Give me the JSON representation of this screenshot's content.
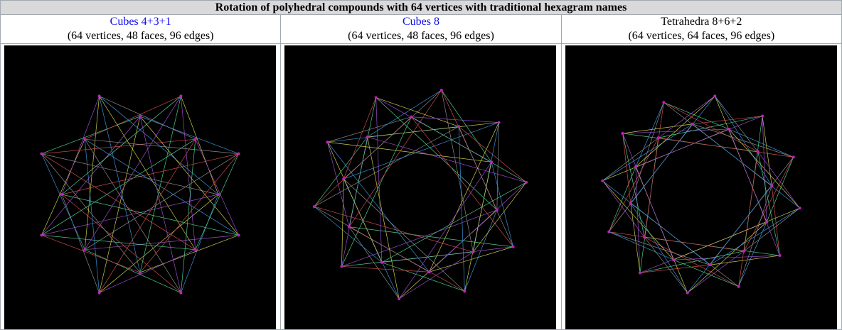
{
  "table": {
    "title": "Rotation of polyhedral compounds with 64 vertices with traditional hexagram names",
    "columns": [
      {
        "name": "Cubes 4+3+1",
        "stats": "(64 vertices, 48 faces, 96 edges)"
      },
      {
        "name": "Cubes 8",
        "stats": "(64 vertices, 48 faces, 96 edges)"
      },
      {
        "name": "Tetrahedra 8+6+2",
        "stats": "(64 vertices, 64 faces, 96 edges)"
      }
    ]
  }
}
